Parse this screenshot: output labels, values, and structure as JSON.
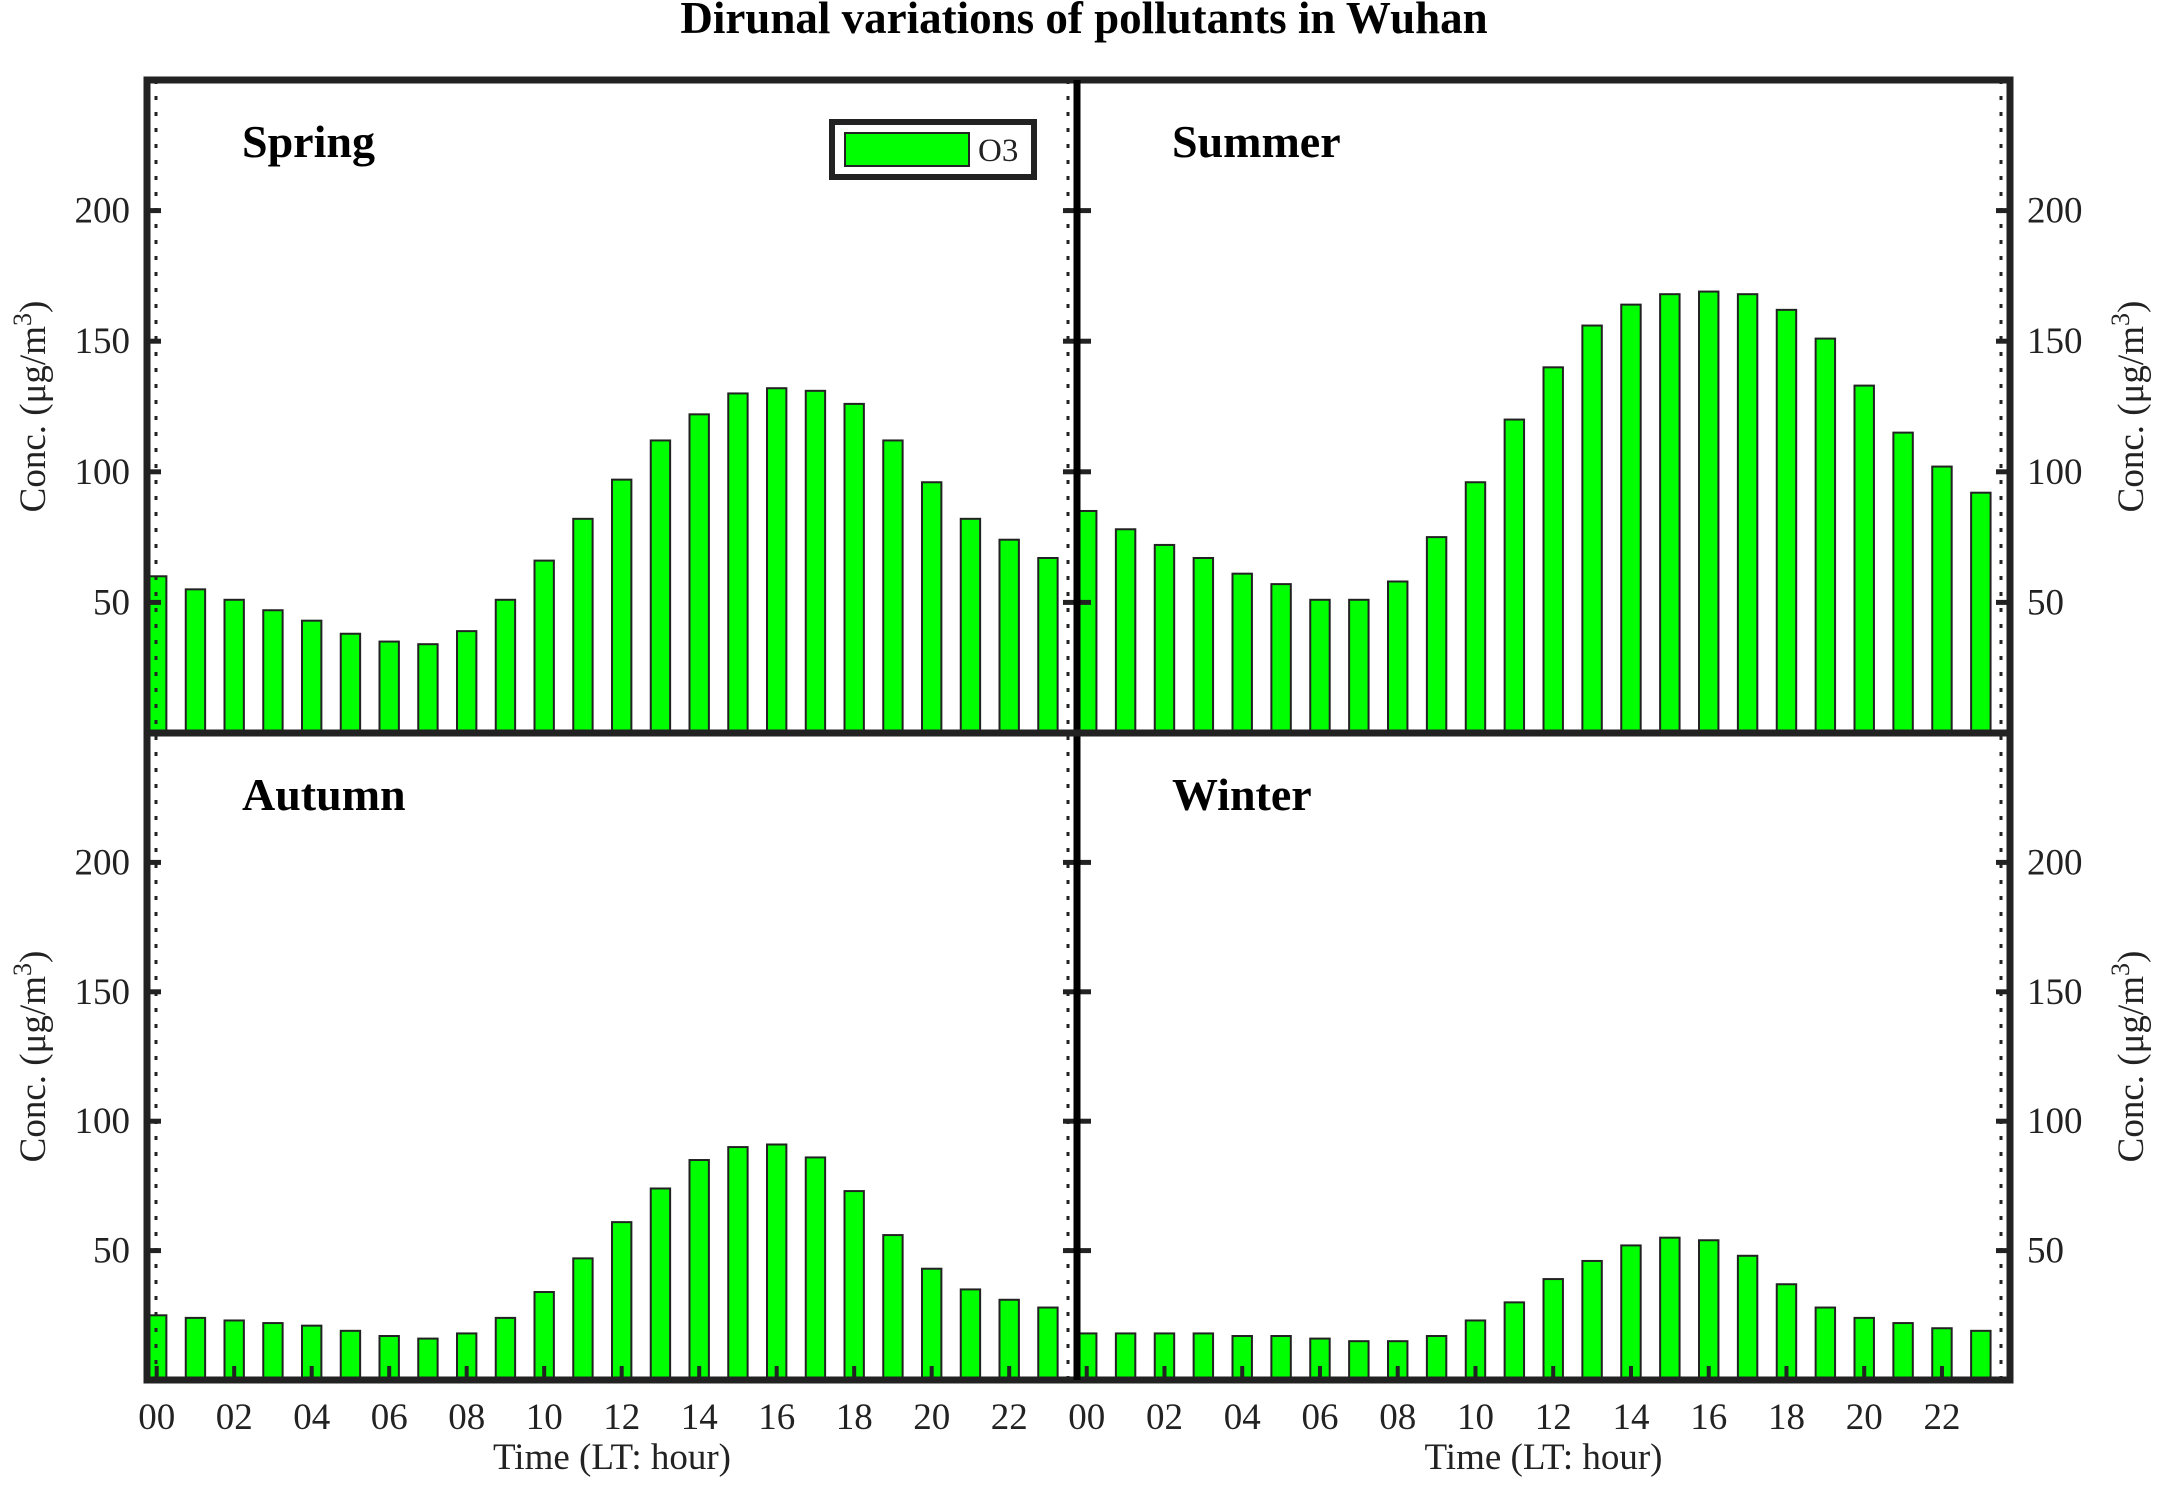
{
  "figure": {
    "title": "Dirunal variations of pollutants in Wuhan",
    "bar_color": "#00ff00",
    "bar_edge": "#222222",
    "frame_color": "#222222",
    "legend": {
      "label": "O3"
    },
    "y_label_left": "Conc. (μg/m",
    "y_label_right": "Conc. (μg/m",
    "y_label_sup": "3",
    "y_label_close": ")",
    "x_label": "Time (LT: hour)",
    "x_tick_labels": [
      "00",
      "02",
      "04",
      "06",
      "08",
      "10",
      "12",
      "14",
      "16",
      "18",
      "20",
      "22"
    ],
    "y_tick_labels": [
      "50",
      "100",
      "150",
      "200"
    ]
  },
  "chart_data": [
    {
      "type": "bar",
      "panel": "Spring",
      "categories": [
        "00",
        "01",
        "02",
        "03",
        "04",
        "05",
        "06",
        "07",
        "08",
        "09",
        "10",
        "11",
        "12",
        "13",
        "14",
        "15",
        "16",
        "17",
        "18",
        "19",
        "20",
        "21",
        "22",
        "23"
      ],
      "values": [
        60,
        55,
        51,
        47,
        43,
        38,
        35,
        34,
        39,
        51,
        66,
        82,
        97,
        112,
        122,
        130,
        132,
        131,
        126,
        112,
        96,
        82,
        74,
        67
      ],
      "ylim": [
        0,
        250
      ],
      "series_name": "O3"
    },
    {
      "type": "bar",
      "panel": "Summer",
      "categories": [
        "00",
        "01",
        "02",
        "03",
        "04",
        "05",
        "06",
        "07",
        "08",
        "09",
        "10",
        "11",
        "12",
        "13",
        "14",
        "15",
        "16",
        "17",
        "18",
        "19",
        "20",
        "21",
        "22",
        "23"
      ],
      "values": [
        85,
        78,
        72,
        67,
        61,
        57,
        51,
        51,
        58,
        75,
        96,
        120,
        140,
        156,
        164,
        168,
        169,
        168,
        162,
        151,
        133,
        115,
        102,
        92
      ],
      "ylim": [
        0,
        250
      ],
      "series_name": "O3"
    },
    {
      "type": "bar",
      "panel": "Autumn",
      "categories": [
        "00",
        "01",
        "02",
        "03",
        "04",
        "05",
        "06",
        "07",
        "08",
        "09",
        "10",
        "11",
        "12",
        "13",
        "14",
        "15",
        "16",
        "17",
        "18",
        "19",
        "20",
        "21",
        "22",
        "23"
      ],
      "values": [
        25,
        24,
        23,
        22,
        21,
        19,
        17,
        16,
        18,
        24,
        34,
        47,
        61,
        74,
        85,
        90,
        91,
        86,
        73,
        56,
        43,
        35,
        31,
        28
      ],
      "ylim": [
        0,
        250
      ],
      "series_name": "O3"
    },
    {
      "type": "bar",
      "panel": "Winter",
      "categories": [
        "00",
        "01",
        "02",
        "03",
        "04",
        "05",
        "06",
        "07",
        "08",
        "09",
        "10",
        "11",
        "12",
        "13",
        "14",
        "15",
        "16",
        "17",
        "18",
        "19",
        "20",
        "21",
        "22",
        "23"
      ],
      "values": [
        18,
        18,
        18,
        18,
        17,
        17,
        16,
        15,
        15,
        17,
        23,
        30,
        39,
        46,
        52,
        55,
        54,
        48,
        37,
        28,
        24,
        22,
        20,
        19
      ],
      "ylim": [
        0,
        250
      ],
      "series_name": "O3"
    }
  ]
}
